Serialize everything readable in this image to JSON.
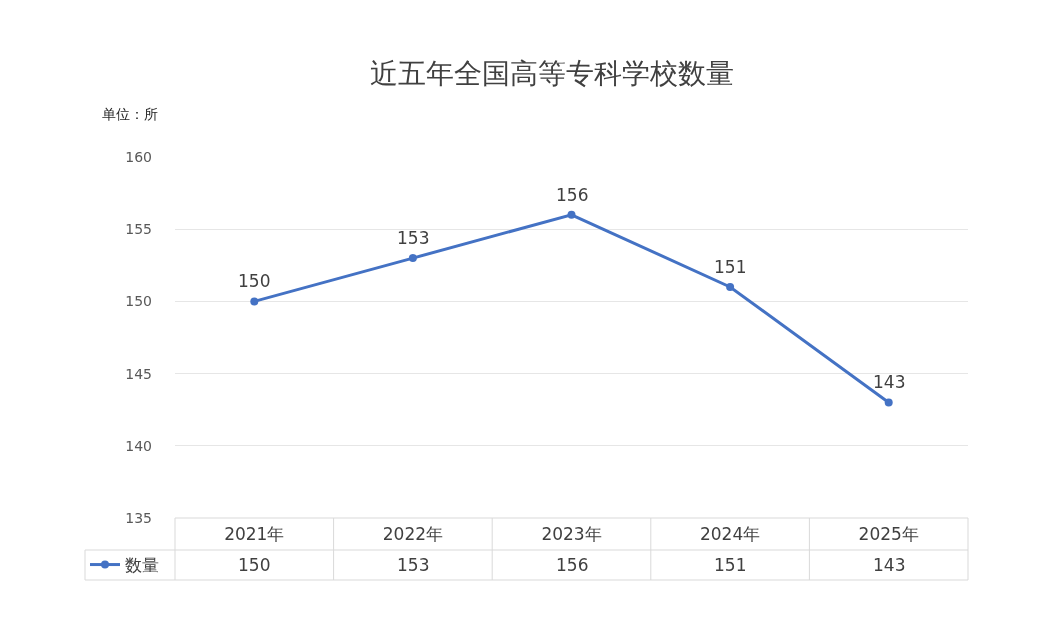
{
  "chart_data": {
    "type": "line",
    "title": "近五年全国高等专科学校数量",
    "categories": [
      "2021年",
      "2022年",
      "2023年",
      "2024年",
      "2025年"
    ],
    "series": [
      {
        "name": "数量",
        "color": "#4472c4",
        "values": [
          150,
          153,
          156,
          151,
          143
        ]
      }
    ],
    "ylim": [
      135,
      160
    ],
    "yticks": [
      135,
      140,
      145,
      150,
      155,
      160
    ],
    "grid": "y",
    "data_labels": true,
    "legend": "bottom left",
    "marker": "circle",
    "line_style": "solid",
    "annotations": [
      "单位：所",
      "150",
      "153",
      "156",
      "151",
      "143"
    ]
  }
}
